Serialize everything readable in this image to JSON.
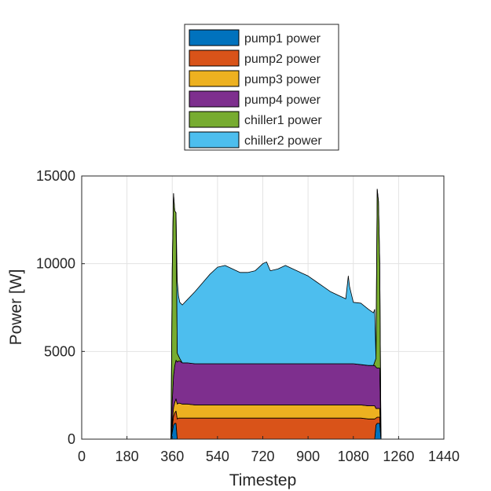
{
  "chart_data": {
    "type": "area",
    "stacked": true,
    "title": "",
    "xlabel": "Timestep",
    "ylabel": "Power [W]",
    "xlim": [
      0,
      1440
    ],
    "ylim": [
      0,
      15000
    ],
    "xticks": [
      0,
      180,
      360,
      540,
      720,
      900,
      1080,
      1260,
      1440
    ],
    "yticks": [
      0,
      5000,
      10000,
      15000
    ],
    "grid": true,
    "legend_position": "top, outside plot",
    "x": [
      355,
      360,
      365,
      370,
      375,
      380,
      385,
      390,
      400,
      420,
      450,
      480,
      510,
      540,
      570,
      600,
      630,
      660,
      690,
      720,
      735,
      750,
      780,
      810,
      840,
      870,
      900,
      930,
      960,
      990,
      1020,
      1050,
      1060,
      1065,
      1080,
      1110,
      1140,
      1160,
      1165,
      1170,
      1175,
      1180,
      1185,
      1190
    ],
    "series": [
      {
        "name": "pump1 power",
        "color": "#0072BD",
        "values": [
          0,
          400,
          800,
          900,
          900,
          0,
          0,
          0,
          0,
          0,
          0,
          0,
          0,
          0,
          0,
          0,
          0,
          0,
          0,
          0,
          0,
          0,
          0,
          0,
          0,
          0,
          0,
          0,
          0,
          0,
          0,
          0,
          0,
          0,
          0,
          0,
          0,
          0,
          0,
          800,
          900,
          900,
          900,
          0
        ]
      },
      {
        "name": "pump2 power",
        "color": "#D95319",
        "values": [
          0,
          300,
          500,
          600,
          700,
          1150,
          1200,
          1200,
          1200,
          1200,
          1200,
          1200,
          1200,
          1200,
          1200,
          1200,
          1200,
          1200,
          1200,
          1200,
          1200,
          1200,
          1200,
          1200,
          1200,
          1200,
          1200,
          1200,
          1200,
          1200,
          1200,
          1200,
          1200,
          1200,
          1200,
          1200,
          1150,
          1150,
          1150,
          400,
          350,
          350,
          350,
          0
        ]
      },
      {
        "name": "pump3 power",
        "color": "#EDB120",
        "values": [
          0,
          300,
          500,
          600,
          700,
          850,
          850,
          850,
          800,
          800,
          750,
          750,
          750,
          750,
          750,
          750,
          750,
          750,
          750,
          750,
          750,
          750,
          750,
          750,
          750,
          750,
          750,
          750,
          750,
          750,
          750,
          750,
          750,
          750,
          750,
          750,
          750,
          750,
          750,
          550,
          500,
          500,
          500,
          0
        ]
      },
      {
        "name": "pump4 power",
        "color": "#7E2F8E",
        "values": [
          0,
          1200,
          1800,
          2100,
          2200,
          2400,
          2400,
          2400,
          2350,
          2350,
          2350,
          2350,
          2350,
          2350,
          2350,
          2350,
          2350,
          2350,
          2350,
          2350,
          2350,
          2350,
          2350,
          2350,
          2350,
          2350,
          2350,
          2350,
          2350,
          2350,
          2350,
          2350,
          2350,
          2350,
          2350,
          2300,
          2300,
          2300,
          2300,
          2350,
          2300,
          2300,
          2300,
          0
        ]
      },
      {
        "name": "chiller1 power",
        "color": "#77AC30",
        "values": [
          0,
          7500,
          10400,
          8800,
          8400,
          500,
          300,
          150,
          0,
          0,
          0,
          0,
          0,
          0,
          0,
          0,
          0,
          0,
          0,
          0,
          0,
          0,
          0,
          0,
          0,
          0,
          0,
          0,
          0,
          0,
          0,
          0,
          0,
          0,
          0,
          0,
          0,
          0,
          200,
          500,
          10200,
          9500,
          6000,
          0
        ]
      },
      {
        "name": "chiller2 power",
        "color": "#4DBEEE",
        "values": [
          0,
          0,
          0,
          0,
          0,
          4100,
          3400,
          3200,
          3300,
          3600,
          4100,
          4600,
          5100,
          5500,
          5600,
          5400,
          5200,
          5200,
          5300,
          5700,
          5800,
          5300,
          5400,
          5600,
          5400,
          5200,
          5000,
          4700,
          4400,
          4100,
          3900,
          3700,
          5000,
          4400,
          3500,
          3500,
          3200,
          3000,
          3000,
          0,
          0,
          0,
          0,
          0
        ]
      }
    ]
  }
}
